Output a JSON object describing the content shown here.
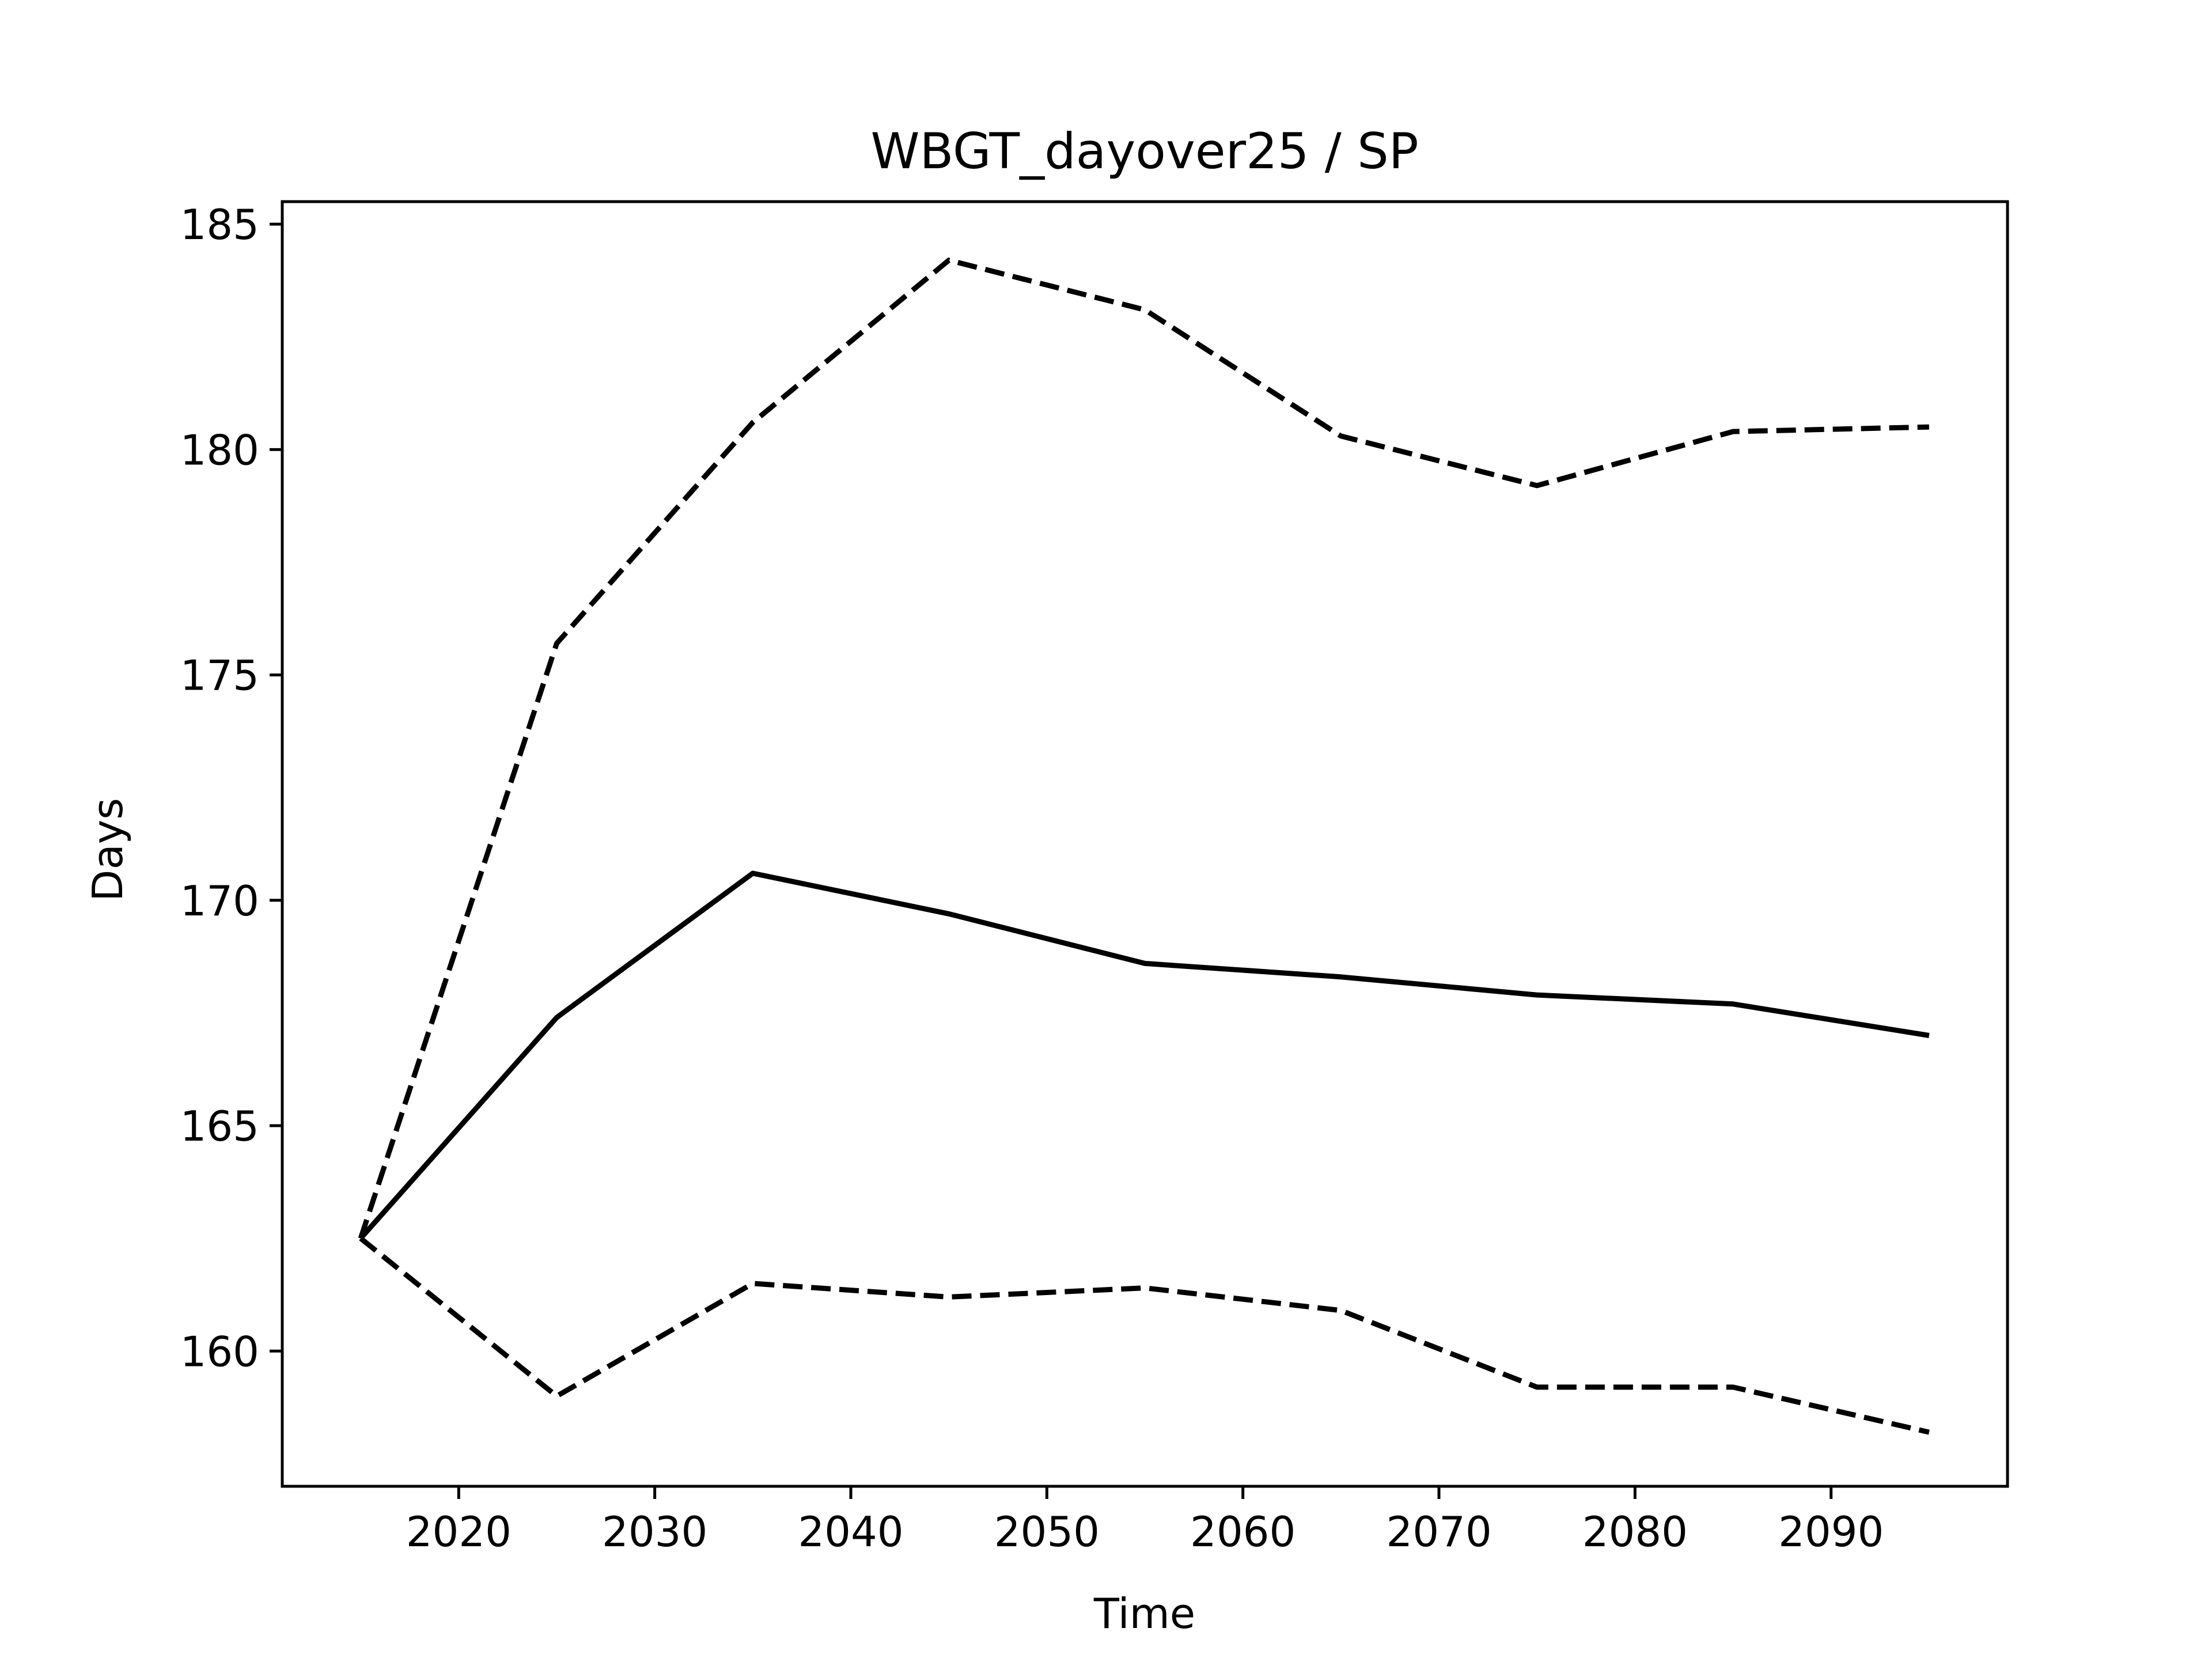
{
  "chart_data": {
    "type": "line",
    "title": "WBGT_dayover25 / SP",
    "xlabel": "Time",
    "ylabel": "Days",
    "xlim": [
      2011,
      2099
    ],
    "ylim": [
      157,
      185.5
    ],
    "xticks": [
      2020,
      2030,
      2040,
      2050,
      2060,
      2070,
      2080,
      2090
    ],
    "yticks": [
      160,
      165,
      170,
      175,
      180,
      185
    ],
    "x": [
      2015,
      2025,
      2035,
      2045,
      2055,
      2065,
      2075,
      2085,
      2095
    ],
    "grid": false,
    "legend": "none",
    "series": [
      {
        "style": "solid",
        "color": "#000000",
        "values": [
          162.5,
          167.4,
          170.6,
          169.7,
          168.6,
          168.3,
          167.9,
          167.7,
          167.0
        ]
      },
      {
        "style": "dashed",
        "color": "#000000",
        "values": [
          162.5,
          175.7,
          180.6,
          184.2,
          183.1,
          180.3,
          179.2,
          180.4,
          180.5
        ]
      },
      {
        "style": "dashed",
        "color": "#000000",
        "values": [
          162.5,
          159.0,
          161.5,
          161.2,
          161.4,
          160.9,
          159.2,
          159.2,
          158.2
        ]
      }
    ]
  }
}
